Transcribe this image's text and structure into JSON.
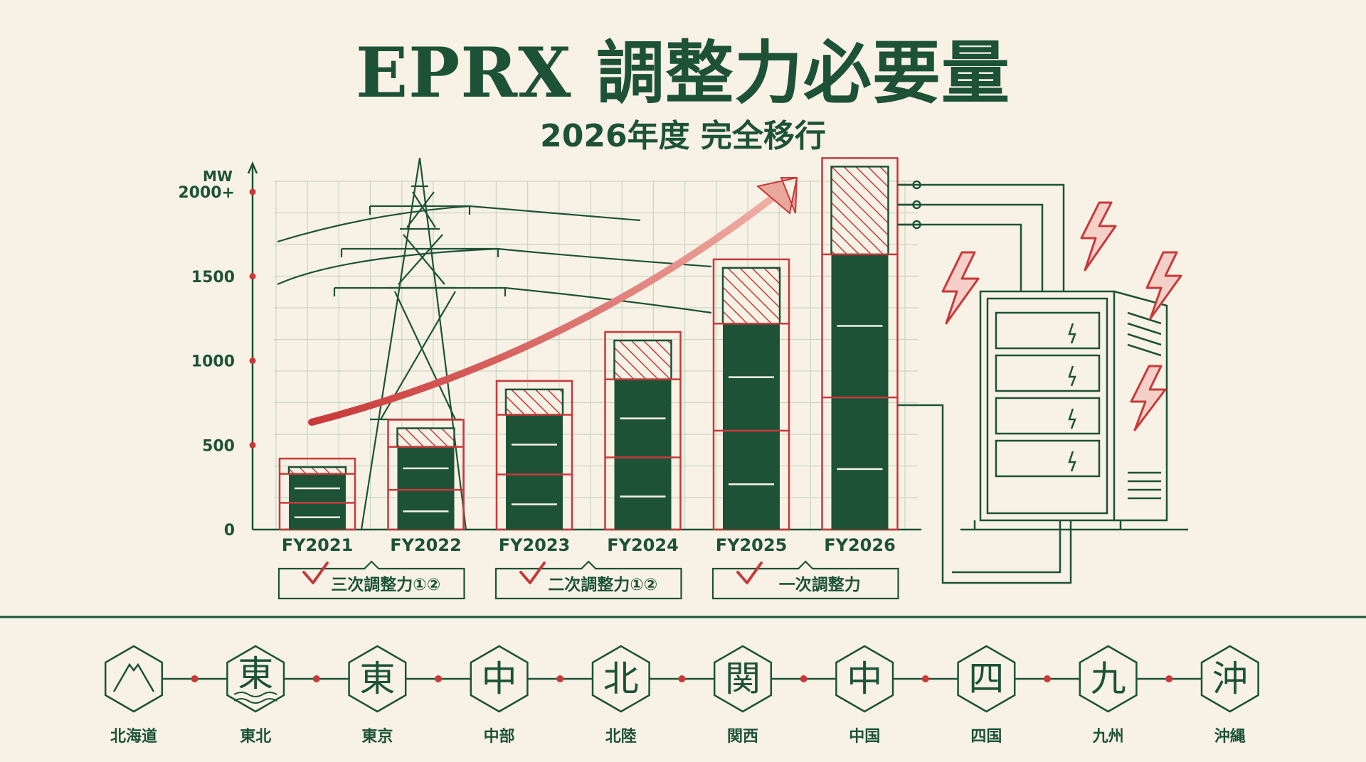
{
  "title": "EPRX 調整力必要量",
  "subtitle": "2026年度 完全移行",
  "chart_data": {
    "type": "bar",
    "ylabel": "MW",
    "ylim": [
      0,
      2000
    ],
    "yticks": [
      {
        "value": 0,
        "label": "0"
      },
      {
        "value": 500,
        "label": "500"
      },
      {
        "value": 1000,
        "label": "1000"
      },
      {
        "value": 1500,
        "label": "1500"
      },
      {
        "value": 2000,
        "label": "2000+"
      }
    ],
    "categories": [
      "FY2021",
      "FY2022",
      "FY2023",
      "FY2024",
      "FY2025",
      "FY2026"
    ],
    "series": [
      {
        "values": [
          330,
          490,
          680,
          890,
          1220,
          1630
        ]
      },
      {
        "values": [
          40,
          110,
          150,
          230,
          330,
          520
        ]
      }
    ],
    "phases": [
      {
        "label": "三次調整力①②"
      },
      {
        "label": "二次調整力①②"
      },
      {
        "label": "一次調整力"
      }
    ]
  },
  "regions": [
    {
      "glyph": "",
      "label": "北海道"
    },
    {
      "glyph": "東",
      "label": "東北"
    },
    {
      "glyph": "東",
      "label": "東京"
    },
    {
      "glyph": "中",
      "label": "中部"
    },
    {
      "glyph": "北",
      "label": "北陸"
    },
    {
      "glyph": "関",
      "label": "関西"
    },
    {
      "glyph": "中",
      "label": "中国"
    },
    {
      "glyph": "四",
      "label": "四国"
    },
    {
      "glyph": "九",
      "label": "九州"
    },
    {
      "glyph": "沖",
      "label": "沖縄"
    }
  ],
  "icons": {
    "region_0": "mountain-icon",
    "region_1": "waves-icon",
    "battery_cabinet": "battery-storage-icon",
    "bolt": "lightning-bolt-icon",
    "tower": "transmission-tower-icon",
    "check": "check-mark-icon",
    "trend": "trend-arrow-icon"
  },
  "colors": {
    "bar": "#1d5236",
    "accent": "#c9393a",
    "background": "#f7f2e5",
    "grid": "#c9d6c6"
  }
}
